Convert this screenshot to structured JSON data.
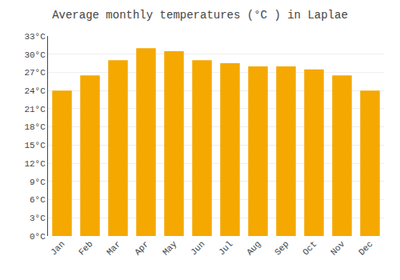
{
  "chart_data": {
    "type": "bar",
    "title": "Average monthly temperatures (°C ) in Laplae",
    "categories": [
      "Jan",
      "Feb",
      "Mar",
      "Apr",
      "May",
      "Jun",
      "Jul",
      "Aug",
      "Sep",
      "Oct",
      "Nov",
      "Dec"
    ],
    "values": [
      24.0,
      26.5,
      29.0,
      31.0,
      30.5,
      29.0,
      28.5,
      28.0,
      28.0,
      27.5,
      26.5,
      24.0
    ],
    "color": "#F5A800",
    "ylim": [
      0,
      33
    ],
    "yticks": [
      {
        "value": 0,
        "label": "0°C"
      },
      {
        "value": 3,
        "label": "3°C"
      },
      {
        "value": 6,
        "label": "6°C"
      },
      {
        "value": 9,
        "label": "9°C"
      },
      {
        "value": 12,
        "label": "12°C"
      },
      {
        "value": 15,
        "label": "15°C"
      },
      {
        "value": 18,
        "label": "18°C"
      },
      {
        "value": 21,
        "label": "21°C"
      },
      {
        "value": 24,
        "label": "24°C"
      },
      {
        "value": 27,
        "label": "27°C"
      },
      {
        "value": 30,
        "label": "30°C"
      },
      {
        "value": 33,
        "label": "33°C"
      }
    ],
    "grid": true
  }
}
